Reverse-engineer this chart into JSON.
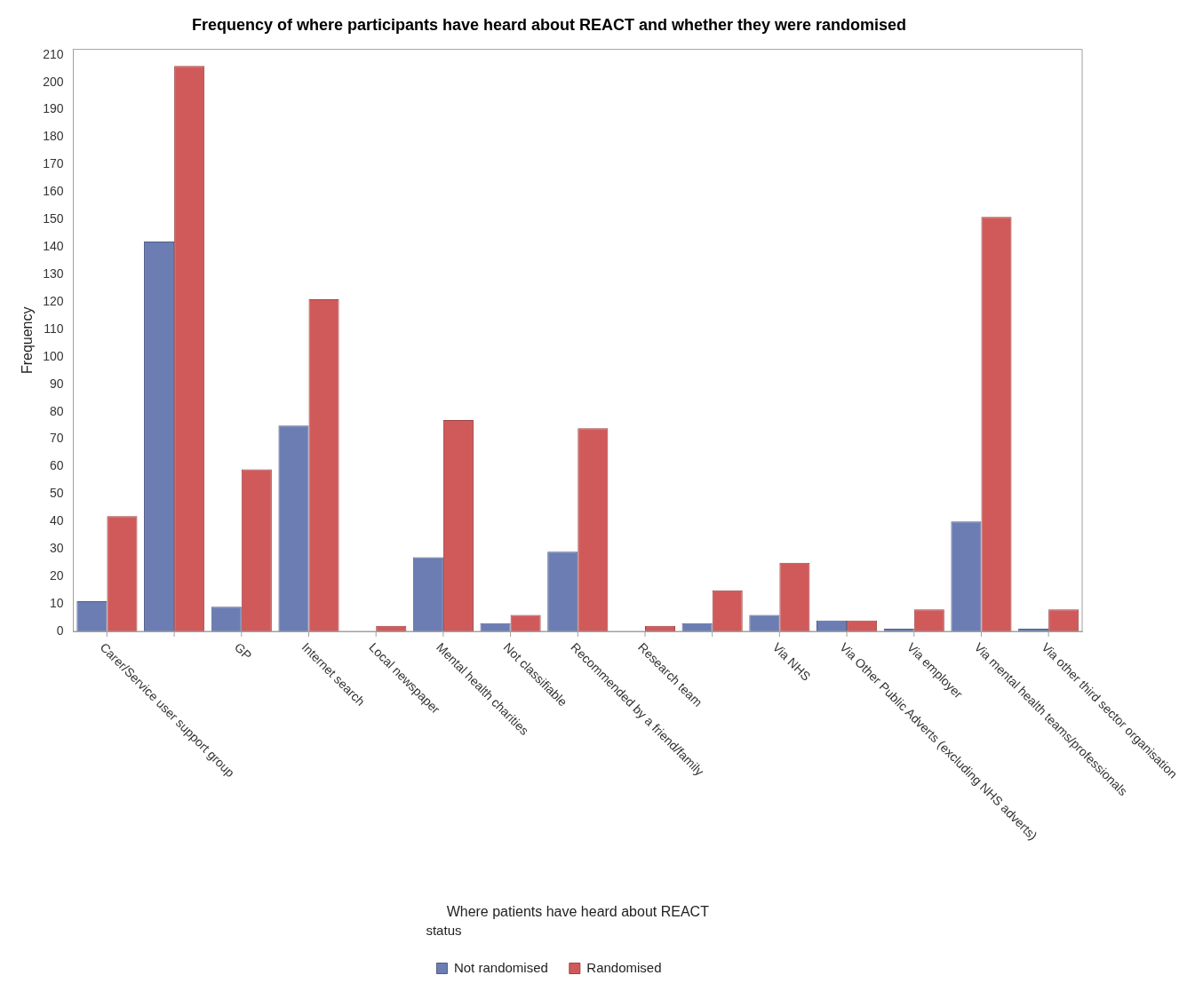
{
  "chart_data": {
    "type": "bar",
    "title": "Frequency of where participants have heard about REACT and whether they were randomised",
    "xlabel": "Where patients have heard about REACT",
    "ylabel": "Frequency",
    "legend_title": "status",
    "categories": [
      "Carer/Service user support group",
      null,
      "GP",
      "Internet search",
      "Local newspaper",
      "Mental health charities",
      "Not classifiable",
      "Recommended by a friend/family",
      "Research team",
      null,
      "Via NHS",
      "Via Other Public Adverts (excluding NHS adverts)",
      "Via employer",
      "Via mental health teams/professionals",
      "Via other third sector organisation"
    ],
    "series": [
      {
        "name": "Not randomised",
        "color": "#6b7db3",
        "values": [
          11,
          142,
          9,
          75,
          null,
          27,
          3,
          29,
          null,
          3,
          6,
          4,
          1,
          40,
          1
        ]
      },
      {
        "name": "Randomised",
        "color": "#d05a5a",
        "values": [
          42,
          206,
          59,
          121,
          2,
          77,
          6,
          74,
          2,
          15,
          25,
          4,
          8,
          151,
          8
        ]
      }
    ],
    "ylim": [
      0,
      212
    ],
    "yticks": [
      0,
      10,
      20,
      30,
      40,
      50,
      60,
      70,
      80,
      90,
      100,
      110,
      120,
      130,
      140,
      150,
      160,
      170,
      180,
      190,
      200,
      210
    ],
    "grid": false,
    "legend": "bottom"
  }
}
